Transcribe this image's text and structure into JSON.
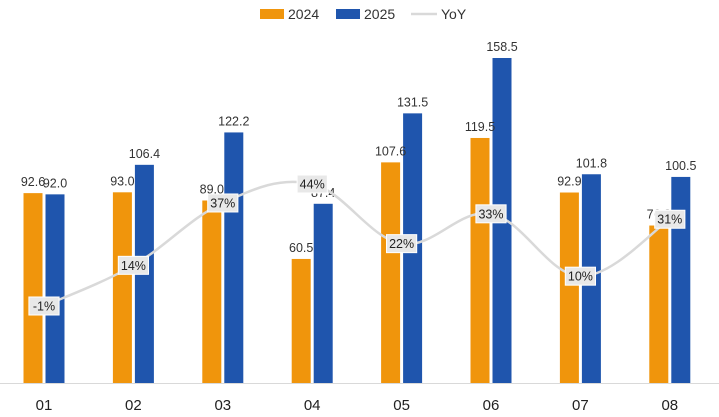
{
  "chart_data": {
    "type": "bar",
    "categories": [
      "01",
      "02",
      "03",
      "04",
      "05",
      "06",
      "07",
      "08"
    ],
    "series": [
      {
        "name": "2024",
        "type": "bar",
        "color": "#f0950c",
        "values": [
          92.6,
          93.0,
          89.0,
          60.5,
          107.6,
          119.5,
          92.9,
          76.8
        ]
      },
      {
        "name": "2025",
        "type": "bar",
        "color": "#1f55ad",
        "values": [
          92.0,
          106.4,
          122.2,
          87.4,
          131.5,
          158.5,
          101.8,
          100.5
        ]
      },
      {
        "name": "YoY",
        "type": "line",
        "color": "#d9d9d9",
        "values": [
          "-1%",
          "14%",
          "37%",
          "44%",
          "22%",
          "33%",
          "10%",
          "31%"
        ]
      }
    ],
    "bar_labels": {
      "2024": [
        "92.6",
        "93.0",
        "89.0",
        "60.5",
        "107.6",
        "119.5",
        "92.9",
        "76.8"
      ],
      "2025": [
        "92.0",
        "106.4",
        "122.2",
        "87.4",
        "131.5",
        "158.5",
        "101.8",
        "100.5"
      ]
    },
    "legend_position": "top",
    "grid": false,
    "ylim": [
      0,
      165
    ]
  }
}
